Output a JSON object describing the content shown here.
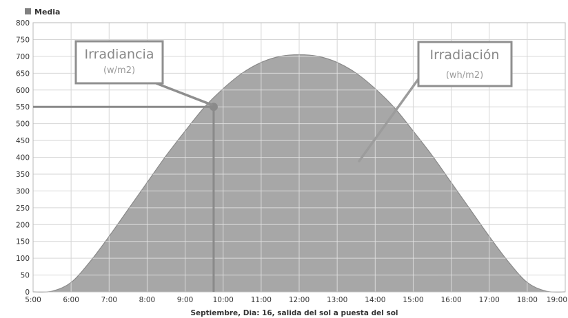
{
  "chart_data": {
    "type": "area",
    "title": "",
    "xlabel": "Septiembre, Dia: 16, salida del sol a puesta del sol",
    "ylabel": "",
    "x_ticks": [
      "5:00",
      "6:00",
      "7:00",
      "8:00",
      "9:00",
      "10:00",
      "11:00",
      "12:00",
      "13:00",
      "14:00",
      "15:00",
      "16:00",
      "17:00",
      "18:00",
      "19:00"
    ],
    "xlim": [
      5,
      19
    ],
    "ylim": [
      0,
      800
    ],
    "y_ticks": [
      0,
      50,
      100,
      150,
      200,
      250,
      300,
      350,
      400,
      450,
      500,
      550,
      600,
      650,
      700,
      750,
      800
    ],
    "grid": true,
    "legend": {
      "position": "top-left",
      "entries": [
        "Media"
      ]
    },
    "series": [
      {
        "name": "Media",
        "x": [
          5,
          5.5,
          6,
          6.5,
          7,
          7.5,
          8,
          8.5,
          9,
          9.5,
          10,
          10.5,
          11,
          11.5,
          12,
          12.5,
          13,
          13.5,
          14,
          14.5,
          15,
          15.5,
          16,
          16.5,
          17,
          17.5,
          18,
          18.5,
          19
        ],
        "y": [
          0,
          2,
          28,
          90,
          165,
          245,
          325,
          405,
          478,
          548,
          604,
          650,
          682,
          700,
          705,
          700,
          682,
          650,
          604,
          548,
          478,
          405,
          325,
          245,
          165,
          90,
          28,
          2,
          0
        ]
      }
    ],
    "annotations": {
      "marker": {
        "x": 9.75,
        "y": 550
      },
      "irradiancia": {
        "title": "Irradiancia",
        "unit": "(w/m2)"
      },
      "irradiacion": {
        "title": "Irradiación",
        "unit": "(wh/m2)"
      }
    }
  },
  "colors": {
    "fill": "#a7a7a7",
    "line": "#8a8a8a",
    "grid_inner": "#e4e4e4",
    "grid_outer": "#d6d6d6",
    "marker_line": "#8a8a8a",
    "annotation_border": "#8f8f8f",
    "legend_swatch": "#808080",
    "axis_text": "#333333"
  }
}
